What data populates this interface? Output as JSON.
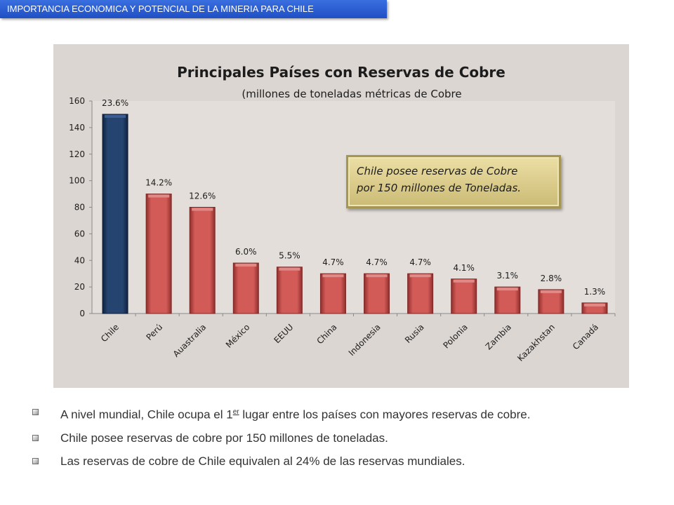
{
  "header": {
    "title": "IMPORTANCIA ECONOMICA Y POTENCIAL DE LA MINERIA PARA CHILE"
  },
  "chart_data": {
    "type": "bar",
    "title": "Principales Países con Reservas de Cobre",
    "subtitle": "(millones de toneladas métricas de Cobre",
    "categories": [
      "Chile",
      "Perú",
      "Auastralia",
      "México",
      "EEUU",
      "China",
      "Indonesia",
      "Rusia",
      "Polonia",
      "Zambia",
      "Kazakhstan",
      "Canadá"
    ],
    "values": [
      150,
      90,
      80,
      38,
      35,
      30,
      30,
      30,
      26,
      20,
      18,
      8
    ],
    "data_labels": [
      "23.6%",
      "14.2%",
      "12.6%",
      "6.0%",
      "5.5%",
      "4.7%",
      "4.7%",
      "4.7%",
      "4.1%",
      "3.1%",
      "2.8%",
      "1.3%"
    ],
    "y_ticks": [
      "0",
      "20",
      "40",
      "60",
      "80",
      "100",
      "120",
      "140",
      "160"
    ],
    "ylim": [
      0,
      160
    ],
    "xlabel": "",
    "ylabel": "",
    "grid": false,
    "highlight_color": "#1f3a66",
    "bar_color": "#c9524f",
    "annotation": {
      "line1": "Chile  posee reservas de Cobre",
      "line2": "por 150 millones de Toneladas."
    }
  },
  "bullets": [
    {
      "before": "A nivel  mundial, Chile ocupa el 1",
      "sup": "er",
      "after": " lugar entre los países con mayores reservas de cobre."
    },
    {
      "text": "Chile posee reservas de cobre por 150 millones de toneladas."
    },
    {
      "text": "Las reservas de cobre de Chile equivalen al 24% de las reservas mundiales."
    }
  ]
}
